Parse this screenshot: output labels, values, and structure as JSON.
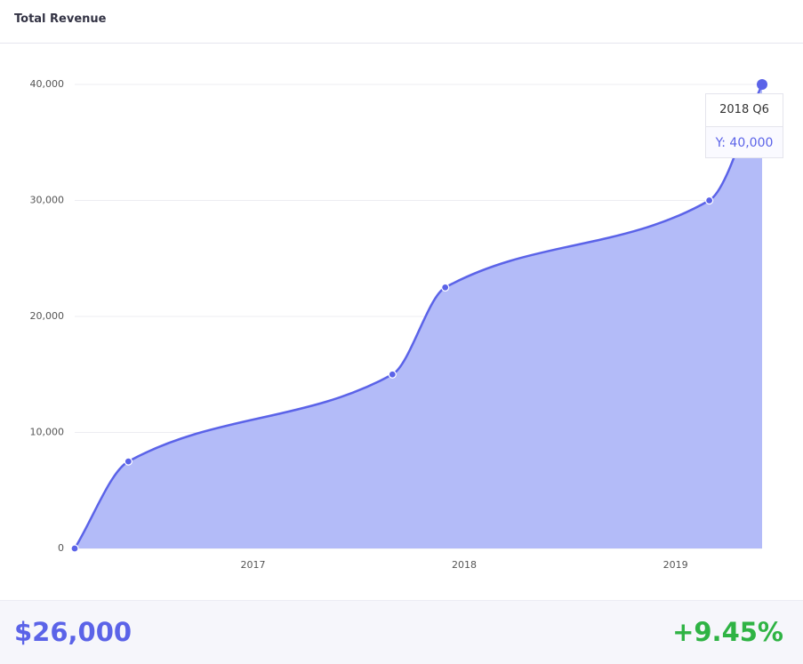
{
  "header": {
    "title": "Total Revenue"
  },
  "chart_data": {
    "type": "area",
    "x": [
      2016.156,
      2016.41,
      2017.66,
      2017.91,
      2019.16,
      2019.41
    ],
    "values": [
      0,
      7500,
      15000,
      22500,
      30000,
      40000
    ],
    "color": "#5b63e8",
    "fill": "#b3bbf8",
    "xlim": [
      2016.156,
      2019.41
    ],
    "xticks": [
      2017,
      2018,
      2019
    ],
    "ylim": [
      0,
      40000
    ],
    "yticks": [
      0,
      {
        "value": 10000,
        "label": "10,000"
      },
      {
        "value": 20000,
        "label": "20,000"
      },
      {
        "value": 30000,
        "label": "30,000"
      },
      {
        "value": 40000,
        "label": "40,000"
      }
    ],
    "grid": true,
    "tooltip": {
      "title": "2018 Q6",
      "label": "Y: 40,000"
    }
  },
  "footer": {
    "value": "$26,000",
    "change": "+9.45%"
  }
}
